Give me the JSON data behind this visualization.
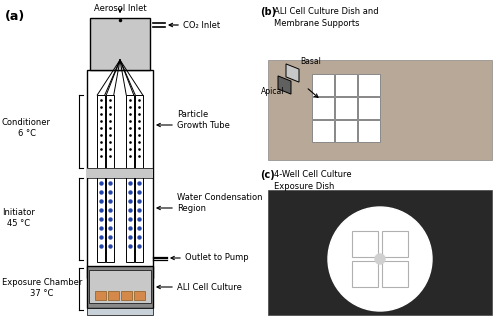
{
  "fig_width": 5.0,
  "fig_height": 3.25,
  "dpi": 100,
  "bg_color": "#ffffff",
  "panel_a_label": "(a)",
  "panel_b_label": "(b)",
  "panel_c_label": "(c)",
  "panel_b_title": "ALI Cell Culture Dish and\nMembrane Supports",
  "panel_c_title": "4-Well Cell Culture\nExposure Dish",
  "label_aerosol": "Aerosol Inlet",
  "label_co2": "CO₂ Inlet",
  "label_pgt": "Particle\nGrowth Tube",
  "label_wcr": "Water Condensation\nRegion",
  "label_pump": "Outlet to Pump",
  "label_ali": "ALI Cell Culture",
  "label_conditioner": "Conditioner\n6 °C",
  "label_initiator": "Initiator\n45 °C",
  "label_exposure": "Exposure Chamber\n37 °C",
  "label_apical": "Apical",
  "label_basal": "Basal",
  "gray_light": "#c8c8c8",
  "gray_dark": "#888888",
  "gray_darker": "#606060",
  "orange_color": "#d4894a",
  "blue_dot": "#2244aa",
  "black": "#000000",
  "photo_b_bg": "#b8a898",
  "photo_b_dish": "#c0b8b0",
  "photo_c_bg": "#282828",
  "white": "#ffffff"
}
